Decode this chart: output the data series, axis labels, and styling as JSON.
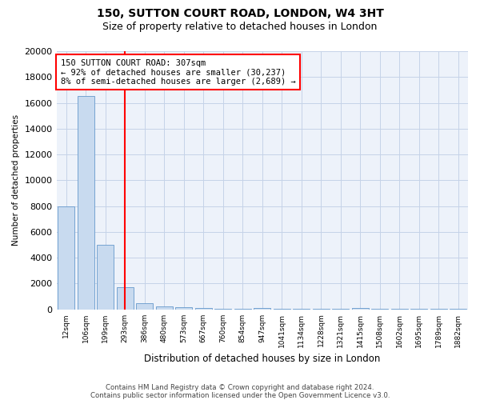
{
  "title1": "150, SUTTON COURT ROAD, LONDON, W4 3HT",
  "title2": "Size of property relative to detached houses in London",
  "xlabel": "Distribution of detached houses by size in London",
  "ylabel": "Number of detached properties",
  "categories": [
    "12sqm",
    "106sqm",
    "199sqm",
    "293sqm",
    "386sqm",
    "480sqm",
    "573sqm",
    "667sqm",
    "760sqm",
    "854sqm",
    "947sqm",
    "1041sqm",
    "1134sqm",
    "1228sqm",
    "1321sqm",
    "1415sqm",
    "1508sqm",
    "1602sqm",
    "1695sqm",
    "1789sqm",
    "1882sqm"
  ],
  "values": [
    8000,
    16500,
    5000,
    1700,
    500,
    250,
    150,
    100,
    50,
    50,
    100,
    50,
    50,
    50,
    50,
    100,
    50,
    50,
    50,
    50,
    50
  ],
  "bar_color": "#c8daef",
  "bar_edge_color": "#6699cc",
  "vline_x_index": 3.0,
  "vline_color": "red",
  "ylim": [
    0,
    20000
  ],
  "yticks": [
    0,
    2000,
    4000,
    6000,
    8000,
    10000,
    12000,
    14000,
    16000,
    18000,
    20000
  ],
  "annotation_line1": "150 SUTTON COURT ROAD: 307sqm",
  "annotation_line2": "← 92% of detached houses are smaller (30,237)",
  "annotation_line3": "8% of semi-detached houses are larger (2,689) →",
  "footer1": "Contains HM Land Registry data © Crown copyright and database right 2024.",
  "footer2": "Contains public sector information licensed under the Open Government Licence v3.0.",
  "bg_color": "#edf2fa",
  "grid_color": "#c5d3e8"
}
